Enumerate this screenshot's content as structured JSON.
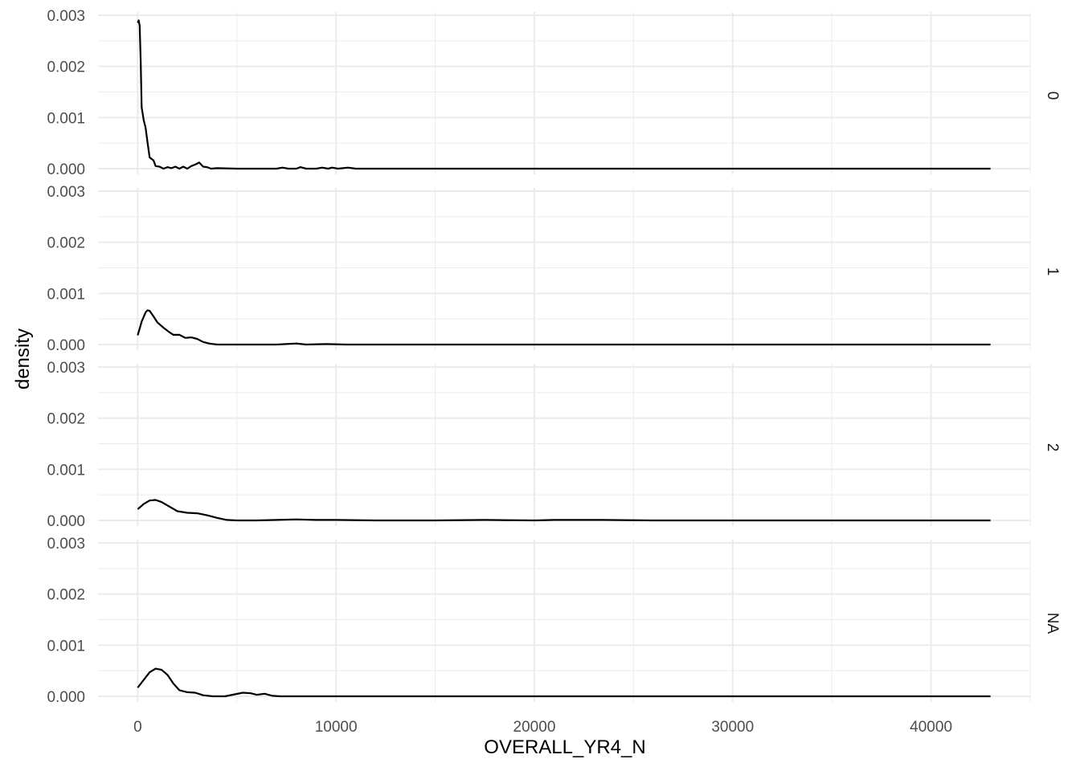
{
  "chart_data": {
    "type": "line",
    "title": "",
    "xlabel": "OVERALL_YR4_N",
    "ylabel": "density",
    "xlim": [
      -2000,
      45000
    ],
    "ylim": [
      0,
      0.003
    ],
    "x_ticks": [
      0,
      10000,
      20000,
      30000,
      40000
    ],
    "x_tick_labels": [
      "0",
      "10000",
      "20000",
      "30000",
      "40000"
    ],
    "y_ticks": [
      0,
      0.001,
      0.002,
      0.003
    ],
    "y_tick_labels": [
      "0.000",
      "0.001",
      "0.002",
      "0.003"
    ],
    "grid": true,
    "facet_direction": "rows",
    "panels": [
      {
        "strip": "0",
        "points": [
          [
            0,
            0.00285
          ],
          [
            50,
            0.0029
          ],
          [
            100,
            0.0028
          ],
          [
            150,
            0.0021
          ],
          [
            200,
            0.0012
          ],
          [
            250,
            0.00108
          ],
          [
            300,
            0.00095
          ],
          [
            400,
            0.0008
          ],
          [
            500,
            0.0005
          ],
          [
            600,
            0.00022
          ],
          [
            800,
            0.00016
          ],
          [
            900,
            5e-05
          ],
          [
            1100,
            4e-05
          ],
          [
            1300,
            0.0
          ],
          [
            1500,
            3e-05
          ],
          [
            1700,
            1e-05
          ],
          [
            1900,
            4e-05
          ],
          [
            2100,
            0.0
          ],
          [
            2300,
            4e-05
          ],
          [
            2500,
            0.0
          ],
          [
            2700,
            5e-05
          ],
          [
            2900,
            8e-05
          ],
          [
            3100,
            0.00012
          ],
          [
            3300,
            4e-05
          ],
          [
            3500,
            3e-05
          ],
          [
            3700,
            0.0
          ],
          [
            4000,
            1e-05
          ],
          [
            5000,
            0.0
          ],
          [
            6000,
            0.0
          ],
          [
            7000,
            0.0
          ],
          [
            7300,
            2e-05
          ],
          [
            7600,
            0.0
          ],
          [
            8000,
            0.0
          ],
          [
            8200,
            3e-05
          ],
          [
            8500,
            0.0
          ],
          [
            9000,
            0.0
          ],
          [
            9300,
            2e-05
          ],
          [
            9600,
            0.0
          ],
          [
            9800,
            2e-05
          ],
          [
            10100,
            0.0
          ],
          [
            10600,
            2e-05
          ],
          [
            11000,
            0.0
          ],
          [
            15000,
            0.0
          ],
          [
            20000,
            0.0
          ],
          [
            25000,
            0.0
          ],
          [
            30000,
            0.0
          ],
          [
            35000,
            0.0
          ],
          [
            40000,
            0.0
          ],
          [
            43000,
            0.0
          ]
        ]
      },
      {
        "strip": "1",
        "points": [
          [
            0,
            0.00018
          ],
          [
            200,
            0.00045
          ],
          [
            400,
            0.00063
          ],
          [
            500,
            0.00067
          ],
          [
            600,
            0.00066
          ],
          [
            800,
            0.00055
          ],
          [
            1000,
            0.00043
          ],
          [
            1300,
            0.00033
          ],
          [
            1600,
            0.00024
          ],
          [
            1800,
            0.00019
          ],
          [
            2100,
            0.00019
          ],
          [
            2400,
            0.00013
          ],
          [
            2700,
            0.00014
          ],
          [
            3000,
            0.00011
          ],
          [
            3300,
            5e-05
          ],
          [
            3600,
            2e-05
          ],
          [
            4000,
            0.0
          ],
          [
            5000,
            0.0
          ],
          [
            6000,
            0.0
          ],
          [
            7000,
            0.0
          ],
          [
            8000,
            2e-05
          ],
          [
            8500,
            0.0
          ],
          [
            9500,
            1e-05
          ],
          [
            10500,
            0.0
          ],
          [
            15000,
            0.0
          ],
          [
            20000,
            0.0
          ],
          [
            25000,
            0.0
          ],
          [
            30000,
            0.0
          ],
          [
            35000,
            0.0
          ],
          [
            40000,
            0.0
          ],
          [
            43000,
            0.0
          ]
        ]
      },
      {
        "strip": "2",
        "points": [
          [
            0,
            0.00022
          ],
          [
            300,
            0.00032
          ],
          [
            600,
            0.00039
          ],
          [
            900,
            0.0004
          ],
          [
            1200,
            0.00036
          ],
          [
            1600,
            0.00027
          ],
          [
            2000,
            0.00018
          ],
          [
            2500,
            0.00015
          ],
          [
            3000,
            0.00014
          ],
          [
            3500,
            0.0001
          ],
          [
            4000,
            5e-05
          ],
          [
            4500,
            1e-05
          ],
          [
            5000,
            0.0
          ],
          [
            6000,
            0.0
          ],
          [
            7000,
            1e-05
          ],
          [
            8000,
            2e-05
          ],
          [
            9000,
            1e-05
          ],
          [
            10000,
            1e-05
          ],
          [
            12000,
            0.0
          ],
          [
            15000,
            0.0
          ],
          [
            17500,
            1e-05
          ],
          [
            20000,
            0.0
          ],
          [
            21000,
            1e-05
          ],
          [
            23500,
            1e-05
          ],
          [
            26000,
            0.0
          ],
          [
            30000,
            0.0
          ],
          [
            35000,
            0.0
          ],
          [
            40000,
            0.0
          ],
          [
            43000,
            0.0
          ]
        ]
      },
      {
        "strip": "NA",
        "points": [
          [
            0,
            0.00017
          ],
          [
            300,
            0.00032
          ],
          [
            600,
            0.00047
          ],
          [
            900,
            0.00054
          ],
          [
            1200,
            0.00052
          ],
          [
            1500,
            0.00042
          ],
          [
            1800,
            0.00025
          ],
          [
            2100,
            0.00012
          ],
          [
            2500,
            8e-05
          ],
          [
            2900,
            7e-05
          ],
          [
            3300,
            2e-05
          ],
          [
            3800,
            0.0
          ],
          [
            4400,
            0.0
          ],
          [
            4900,
            4e-05
          ],
          [
            5300,
            7e-05
          ],
          [
            5700,
            6e-05
          ],
          [
            6000,
            3e-05
          ],
          [
            6400,
            5e-05
          ],
          [
            6800,
            1e-05
          ],
          [
            7200,
            0.0
          ],
          [
            8000,
            0.0
          ],
          [
            10000,
            0.0
          ],
          [
            15000,
            0.0
          ],
          [
            20000,
            0.0
          ],
          [
            25000,
            0.0
          ],
          [
            30000,
            0.0
          ],
          [
            35000,
            0.0
          ],
          [
            40000,
            0.0
          ],
          [
            43000,
            0.0
          ]
        ]
      }
    ]
  }
}
